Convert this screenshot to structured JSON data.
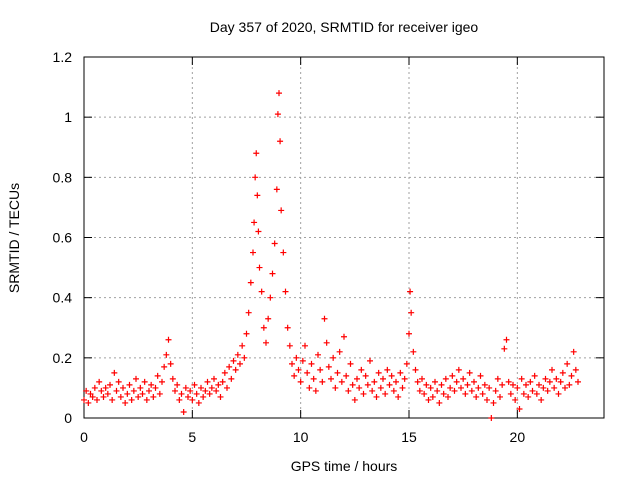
{
  "chart_data": {
    "type": "scatter",
    "title": "Day 357 of 2020, SRMTID for receiver igeo",
    "xlabel": "GPS time / hours",
    "ylabel": "SRMTID / TECUs",
    "xlim": [
      0,
      24
    ],
    "ylim": [
      0,
      1.2
    ],
    "xticks": [
      0,
      5,
      10,
      15,
      20
    ],
    "yticks": [
      0,
      0.2,
      0.4,
      0.6,
      0.8,
      1,
      1.2
    ],
    "xtick_labels": [
      "0",
      "5",
      "10",
      "15",
      "20"
    ],
    "ytick_labels": [
      "0",
      "0.2",
      "0.4",
      "0.6",
      "0.8",
      "1",
      "1.2"
    ],
    "grid": true,
    "marker": "+",
    "series": [
      {
        "name": "SRMTID",
        "color": "#ff0000",
        "points": [
          [
            0.0,
            0.06
          ],
          [
            0.1,
            0.09
          ],
          [
            0.2,
            0.05
          ],
          [
            0.3,
            0.08
          ],
          [
            0.4,
            0.07
          ],
          [
            0.5,
            0.1
          ],
          [
            0.6,
            0.06
          ],
          [
            0.7,
            0.12
          ],
          [
            0.8,
            0.09
          ],
          [
            0.9,
            0.07
          ],
          [
            1.0,
            0.1
          ],
          [
            1.1,
            0.08
          ],
          [
            1.2,
            0.11
          ],
          [
            1.3,
            0.06
          ],
          [
            1.4,
            0.15
          ],
          [
            1.5,
            0.09
          ],
          [
            1.6,
            0.12
          ],
          [
            1.7,
            0.07
          ],
          [
            1.8,
            0.1
          ],
          [
            1.9,
            0.05
          ],
          [
            2.0,
            0.08
          ],
          [
            2.1,
            0.11
          ],
          [
            2.2,
            0.06
          ],
          [
            2.3,
            0.09
          ],
          [
            2.4,
            0.13
          ],
          [
            2.5,
            0.07
          ],
          [
            2.6,
            0.1
          ],
          [
            2.7,
            0.08
          ],
          [
            2.8,
            0.12
          ],
          [
            2.9,
            0.06
          ],
          [
            3.0,
            0.09
          ],
          [
            3.1,
            0.11
          ],
          [
            3.2,
            0.07
          ],
          [
            3.3,
            0.1
          ],
          [
            3.4,
            0.14
          ],
          [
            3.5,
            0.08
          ],
          [
            3.6,
            0.12
          ],
          [
            3.7,
            0.17
          ],
          [
            3.8,
            0.21
          ],
          [
            3.9,
            0.26
          ],
          [
            4.0,
            0.18
          ],
          [
            4.1,
            0.13
          ],
          [
            4.2,
            0.09
          ],
          [
            4.3,
            0.11
          ],
          [
            4.4,
            0.06
          ],
          [
            4.5,
            0.08
          ],
          [
            4.6,
            0.02
          ],
          [
            4.7,
            0.1
          ],
          [
            4.8,
            0.07
          ],
          [
            4.9,
            0.09
          ],
          [
            5.0,
            0.06
          ],
          [
            5.1,
            0.11
          ],
          [
            5.2,
            0.08
          ],
          [
            5.3,
            0.05
          ],
          [
            5.4,
            0.1
          ],
          [
            5.5,
            0.07
          ],
          [
            5.6,
            0.09
          ],
          [
            5.7,
            0.12
          ],
          [
            5.8,
            0.08
          ],
          [
            5.9,
            0.1
          ],
          [
            6.0,
            0.13
          ],
          [
            6.1,
            0.09
          ],
          [
            6.2,
            0.11
          ],
          [
            6.3,
            0.07
          ],
          [
            6.4,
            0.12
          ],
          [
            6.5,
            0.15
          ],
          [
            6.6,
            0.1
          ],
          [
            6.7,
            0.17
          ],
          [
            6.8,
            0.13
          ],
          [
            6.9,
            0.19
          ],
          [
            7.0,
            0.16
          ],
          [
            7.1,
            0.21
          ],
          [
            7.2,
            0.18
          ],
          [
            7.3,
            0.24
          ],
          [
            7.4,
            0.2
          ],
          [
            7.5,
            0.28
          ],
          [
            7.6,
            0.35
          ],
          [
            7.7,
            0.45
          ],
          [
            7.8,
            0.55
          ],
          [
            7.85,
            0.65
          ],
          [
            7.9,
            0.8
          ],
          [
            7.95,
            0.88
          ],
          [
            8.0,
            0.74
          ],
          [
            8.05,
            0.62
          ],
          [
            8.1,
            0.5
          ],
          [
            8.2,
            0.42
          ],
          [
            8.3,
            0.3
          ],
          [
            8.4,
            0.25
          ],
          [
            8.5,
            0.33
          ],
          [
            8.6,
            0.4
          ],
          [
            8.7,
            0.48
          ],
          [
            8.8,
            0.58
          ],
          [
            8.9,
            0.76
          ],
          [
            8.95,
            1.01
          ],
          [
            9.0,
            1.08
          ],
          [
            9.05,
            0.92
          ],
          [
            9.1,
            0.69
          ],
          [
            9.2,
            0.55
          ],
          [
            9.3,
            0.42
          ],
          [
            9.4,
            0.3
          ],
          [
            9.5,
            0.24
          ],
          [
            9.6,
            0.18
          ],
          [
            9.7,
            0.14
          ],
          [
            9.8,
            0.2
          ],
          [
            9.9,
            0.16
          ],
          [
            10.0,
            0.12
          ],
          [
            10.1,
            0.19
          ],
          [
            10.2,
            0.24
          ],
          [
            10.3,
            0.15
          ],
          [
            10.4,
            0.1
          ],
          [
            10.5,
            0.18
          ],
          [
            10.6,
            0.13
          ],
          [
            10.7,
            0.09
          ],
          [
            10.8,
            0.21
          ],
          [
            10.9,
            0.16
          ],
          [
            11.0,
            0.12
          ],
          [
            11.1,
            0.33
          ],
          [
            11.2,
            0.25
          ],
          [
            11.3,
            0.17
          ],
          [
            11.4,
            0.13
          ],
          [
            11.5,
            0.2
          ],
          [
            11.6,
            0.1
          ],
          [
            11.7,
            0.15
          ],
          [
            11.8,
            0.22
          ],
          [
            11.9,
            0.12
          ],
          [
            12.0,
            0.27
          ],
          [
            12.1,
            0.14
          ],
          [
            12.2,
            0.09
          ],
          [
            12.3,
            0.18
          ],
          [
            12.4,
            0.11
          ],
          [
            12.5,
            0.06
          ],
          [
            12.6,
            0.13
          ],
          [
            12.7,
            0.1
          ],
          [
            12.8,
            0.16
          ],
          [
            12.9,
            0.08
          ],
          [
            13.0,
            0.14
          ],
          [
            13.1,
            0.11
          ],
          [
            13.2,
            0.19
          ],
          [
            13.3,
            0.09
          ],
          [
            13.4,
            0.12
          ],
          [
            13.5,
            0.07
          ],
          [
            13.6,
            0.15
          ],
          [
            13.7,
            0.1
          ],
          [
            13.8,
            0.13
          ],
          [
            13.9,
            0.08
          ],
          [
            14.0,
            0.16
          ],
          [
            14.1,
            0.11
          ],
          [
            14.2,
            0.14
          ],
          [
            14.3,
            0.09
          ],
          [
            14.4,
            0.12
          ],
          [
            14.5,
            0.07
          ],
          [
            14.6,
            0.15
          ],
          [
            14.7,
            0.1
          ],
          [
            14.8,
            0.13
          ],
          [
            14.9,
            0.18
          ],
          [
            15.0,
            0.28
          ],
          [
            15.05,
            0.42
          ],
          [
            15.1,
            0.35
          ],
          [
            15.2,
            0.22
          ],
          [
            15.3,
            0.16
          ],
          [
            15.4,
            0.12
          ],
          [
            15.5,
            0.09
          ],
          [
            15.6,
            0.13
          ],
          [
            15.7,
            0.08
          ],
          [
            15.8,
            0.11
          ],
          [
            15.9,
            0.06
          ],
          [
            16.0,
            0.1
          ],
          [
            16.1,
            0.07
          ],
          [
            16.2,
            0.12
          ],
          [
            16.3,
            0.09
          ],
          [
            16.4,
            0.05
          ],
          [
            16.5,
            0.11
          ],
          [
            16.6,
            0.08
          ],
          [
            16.7,
            0.13
          ],
          [
            16.8,
            0.07
          ],
          [
            16.9,
            0.1
          ],
          [
            17.0,
            0.14
          ],
          [
            17.1,
            0.09
          ],
          [
            17.2,
            0.12
          ],
          [
            17.3,
            0.16
          ],
          [
            17.4,
            0.1
          ],
          [
            17.5,
            0.13
          ],
          [
            17.6,
            0.08
          ],
          [
            17.7,
            0.11
          ],
          [
            17.8,
            0.15
          ],
          [
            17.9,
            0.09
          ],
          [
            18.0,
            0.12
          ],
          [
            18.1,
            0.07
          ],
          [
            18.2,
            0.1
          ],
          [
            18.3,
            0.14
          ],
          [
            18.4,
            0.08
          ],
          [
            18.5,
            0.11
          ],
          [
            18.6,
            0.06
          ],
          [
            18.7,
            0.1
          ],
          [
            18.8,
            0.0
          ],
          [
            18.9,
            0.05
          ],
          [
            19.0,
            0.09
          ],
          [
            19.1,
            0.13
          ],
          [
            19.2,
            0.07
          ],
          [
            19.3,
            0.11
          ],
          [
            19.4,
            0.23
          ],
          [
            19.5,
            0.26
          ],
          [
            19.6,
            0.12
          ],
          [
            19.7,
            0.08
          ],
          [
            19.8,
            0.11
          ],
          [
            19.9,
            0.06
          ],
          [
            20.0,
            0.1
          ],
          [
            20.1,
            0.03
          ],
          [
            20.2,
            0.13
          ],
          [
            20.3,
            0.08
          ],
          [
            20.4,
            0.11
          ],
          [
            20.5,
            0.07
          ],
          [
            20.6,
            0.12
          ],
          [
            20.7,
            0.09
          ],
          [
            20.8,
            0.14
          ],
          [
            20.9,
            0.08
          ],
          [
            21.0,
            0.11
          ],
          [
            21.1,
            0.06
          ],
          [
            21.2,
            0.1
          ],
          [
            21.3,
            0.13
          ],
          [
            21.4,
            0.09
          ],
          [
            21.5,
            0.12
          ],
          [
            21.6,
            0.16
          ],
          [
            21.7,
            0.1
          ],
          [
            21.8,
            0.13
          ],
          [
            21.9,
            0.08
          ],
          [
            22.0,
            0.12
          ],
          [
            22.1,
            0.15
          ],
          [
            22.2,
            0.1
          ],
          [
            22.3,
            0.18
          ],
          [
            22.4,
            0.11
          ],
          [
            22.5,
            0.14
          ],
          [
            22.6,
            0.22
          ],
          [
            22.7,
            0.16
          ],
          [
            22.8,
            0.12
          ]
        ]
      }
    ]
  }
}
